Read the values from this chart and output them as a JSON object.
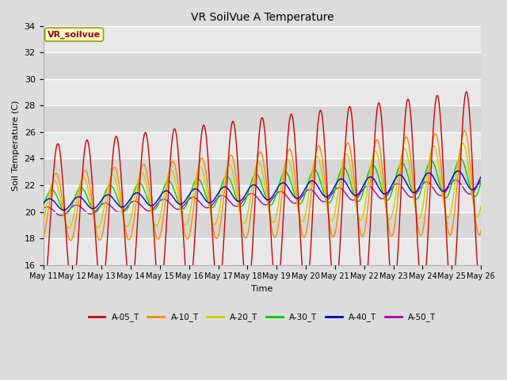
{
  "title": "VR SoilVue A Temperature",
  "xlabel": "Time",
  "ylabel": "Soil Temperature (C)",
  "ylim": [
    16,
    34
  ],
  "n_days": 15,
  "x_tick_labels": [
    "May 11",
    "May 12",
    "May 13",
    "May 14",
    "May 15",
    "May 16",
    "May 17",
    "May 18",
    "May 19",
    "May 20",
    "May 21",
    "May 22",
    "May 23",
    "May 24",
    "May 25",
    "May 26"
  ],
  "series_colors": [
    "#cc0000",
    "#ff8800",
    "#cccc00",
    "#00cc00",
    "#0000cc",
    "#aa00aa"
  ],
  "series_labels": [
    "A-05_T",
    "A-10_T",
    "A-20_T",
    "A-30_T",
    "A-40_T",
    "A-50_T"
  ],
  "bg_color": "#dddddd",
  "plot_bg": "#e8e8e8",
  "annotation_text": "VR_soilvue",
  "annotation_bg": "#ffffcc",
  "annotation_border": "#999900",
  "yticks": [
    16,
    18,
    20,
    22,
    24,
    26,
    28,
    30,
    32,
    34
  ],
  "grid_color": "#ffffff",
  "band_color": "#d0d0d0"
}
